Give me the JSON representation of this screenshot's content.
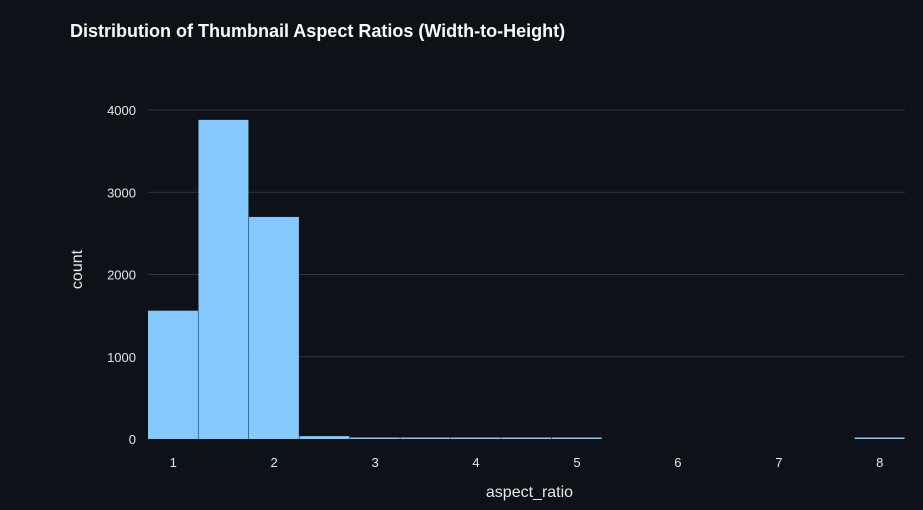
{
  "chart_data": {
    "type": "bar",
    "title": "Distribution of Thumbnail Aspect Ratios (Width-to-Height)",
    "xlabel": "aspect_ratio",
    "ylabel": "count",
    "xlim": [
      0.75,
      8.25
    ],
    "ylim": [
      0,
      4000
    ],
    "x_ticks": [
      1,
      2,
      3,
      4,
      5,
      6,
      7,
      8
    ],
    "y_ticks": [
      0,
      1000,
      2000,
      3000,
      4000
    ],
    "grid": true,
    "bin_width": 0.5,
    "bins": [
      {
        "x0": 0.75,
        "x1": 1.25,
        "count": 1560
      },
      {
        "x0": 1.25,
        "x1": 1.75,
        "count": 3880
      },
      {
        "x0": 1.75,
        "x1": 2.25,
        "count": 2700
      },
      {
        "x0": 2.25,
        "x1": 2.75,
        "count": 35
      },
      {
        "x0": 2.75,
        "x1": 3.25,
        "count": 8
      },
      {
        "x0": 3.25,
        "x1": 3.75,
        "count": 6
      },
      {
        "x0": 3.75,
        "x1": 4.25,
        "count": 6
      },
      {
        "x0": 4.25,
        "x1": 4.75,
        "count": 5
      },
      {
        "x0": 4.75,
        "x1": 5.25,
        "count": 5
      },
      {
        "x0": 5.25,
        "x1": 5.75,
        "count": 0
      },
      {
        "x0": 5.75,
        "x1": 6.25,
        "count": 0
      },
      {
        "x0": 6.25,
        "x1": 6.75,
        "count": 0
      },
      {
        "x0": 6.75,
        "x1": 7.25,
        "count": 0
      },
      {
        "x0": 7.25,
        "x1": 7.75,
        "count": 0
      },
      {
        "x0": 7.75,
        "x1": 8.25,
        "count": 12
      }
    ],
    "bar_color": "#83c9ff",
    "background_color": "#0e1117",
    "grid_color": "#31333f"
  }
}
